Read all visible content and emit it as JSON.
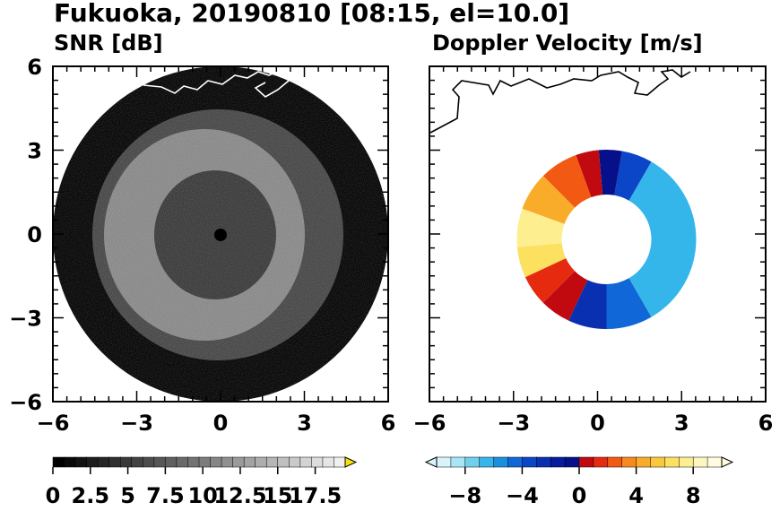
{
  "figure": {
    "title": "Fukuoka, 20190810 [08:15, el=10.0]"
  },
  "chart_data": [
    {
      "type": "heatmap",
      "panel": "left",
      "title": "SNR [dB]",
      "xlabel": "",
      "ylabel": "",
      "xlim": [
        -6,
        6
      ],
      "ylim": [
        -6,
        6
      ],
      "x_ticks": [
        "−6",
        "−3",
        "0",
        "3",
        "6"
      ],
      "y_ticks": [
        "6",
        "3",
        "0",
        "−3",
        "−6"
      ],
      "description_of_values": "radar PPI disc of radius 6 centered at origin; low SNR (dark) in center, brighter annulus between radii ~1.8 and ~4.5",
      "colorbar": {
        "min": 0,
        "max": 19.5,
        "step": 0.75,
        "tick_values": [
          0,
          2.5,
          5,
          7.5,
          10,
          12.5,
          15,
          17.5
        ],
        "tick_labels": [
          "0",
          "2.5",
          "5",
          "7.5",
          "10",
          "12.5",
          "15",
          "17.5"
        ],
        "extend": "max",
        "colors_from": "#000000",
        "colors_to": "#f0f0f0",
        "extend_color": "#f5e30a"
      }
    },
    {
      "type": "heatmap",
      "panel": "right",
      "title": "Doppler Velocity [m/s]",
      "xlabel": "",
      "ylabel": "",
      "xlim": [
        -6,
        6
      ],
      "ylim": [
        -6,
        6
      ],
      "x_ticks": [
        "−6",
        "−3",
        "0",
        "3",
        "6"
      ],
      "y_ticks": [],
      "description_of_values": "velocity annulus between radii ~1.5 and ~3.4; positive (yellow/orange/red) on west side, negative (blue) on east and south",
      "colorbar": {
        "min": -10,
        "max": 10,
        "tick_values": [
          -8,
          -4,
          0,
          4,
          8
        ],
        "tick_labels": [
          "−8",
          "−4",
          "0",
          "4",
          "8"
        ],
        "extend": "both",
        "colors": [
          "#d8f4fa",
          "#a9e6f5",
          "#6fd0ee",
          "#35b6ea",
          "#1a8fe0",
          "#1068d8",
          "#0b46c8",
          "#0830b0",
          "#061c9c",
          "#06108a",
          "#c00a10",
          "#e52a10",
          "#f25a14",
          "#f78a1e",
          "#f9ac2a",
          "#fac83c",
          "#fce060",
          "#fdee90",
          "#fef6bf",
          "#fffce0"
        ]
      }
    }
  ],
  "coastline_color": "#ffffff",
  "coastline_color_right": "#000000"
}
